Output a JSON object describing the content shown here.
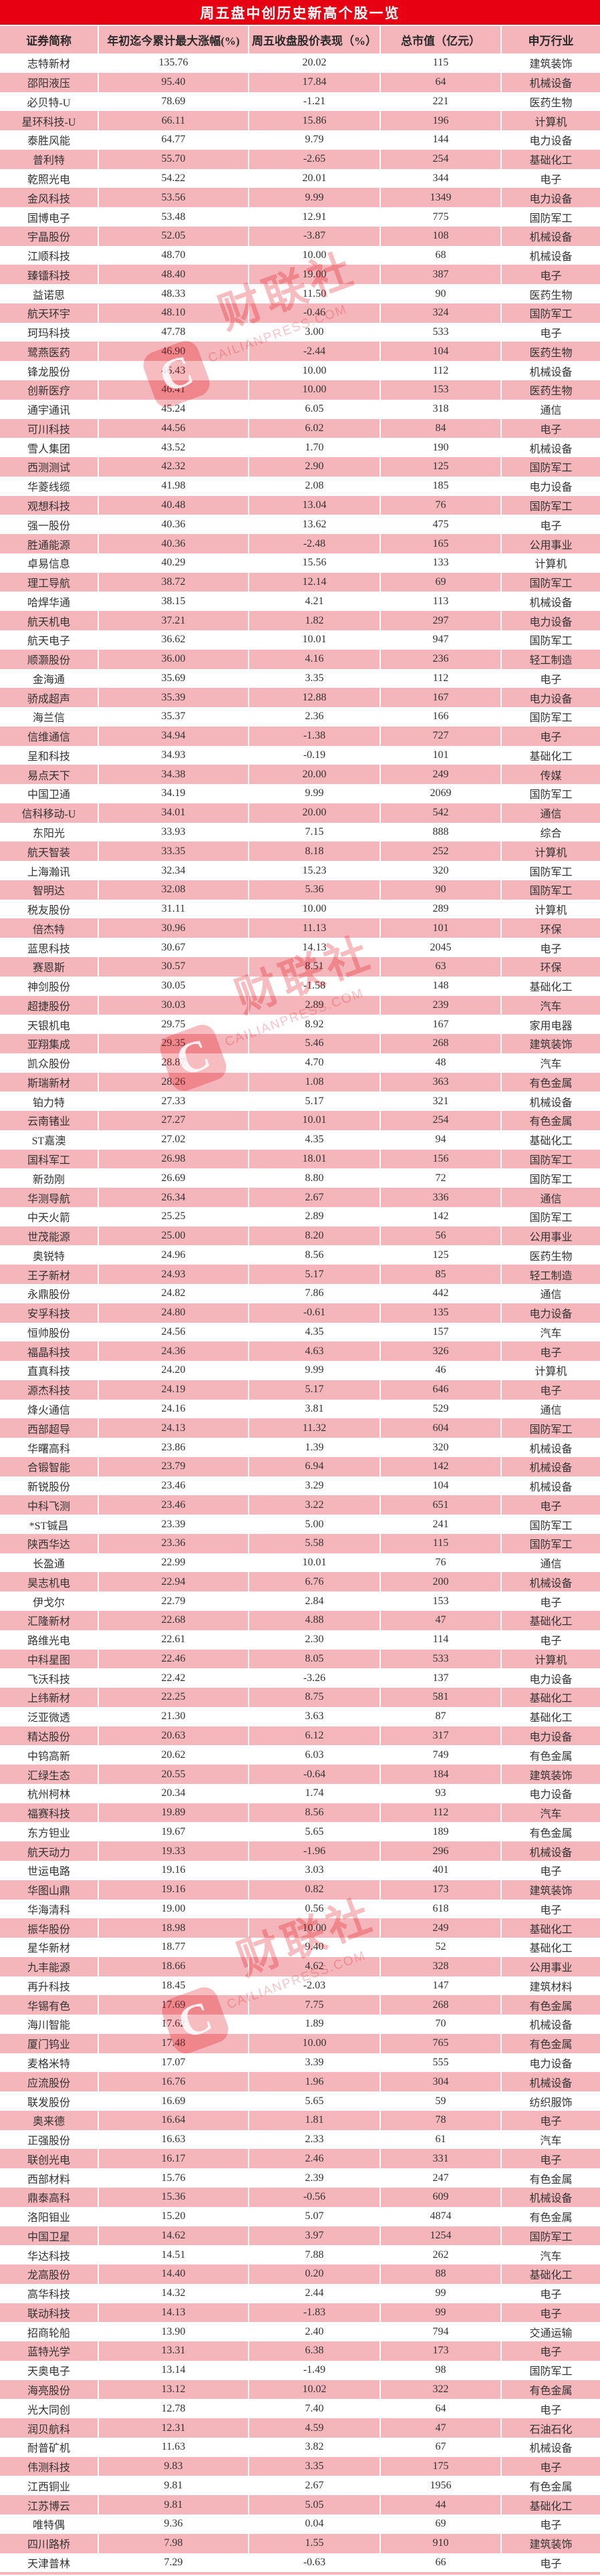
{
  "title": "周五盘中创历史新高个股一览",
  "columns": [
    "证券简称",
    "年初迄今累计最大涨幅(%)",
    "周五收盘股价表现（%）",
    "总市值（亿元）",
    "申万行业"
  ],
  "watermark": {
    "logo_letter": "C",
    "brand": "财联社",
    "domain": "CAILIANPRESS.COM"
  },
  "colors": {
    "title_bg": "#e60012",
    "row_pink": "#f4b6ba",
    "row_white": "#ffffff",
    "text": "#333333",
    "title_text": "#ffffff"
  },
  "rows": [
    [
      "志特新材",
      "135.76",
      "20.02",
      "115",
      "建筑装饰"
    ],
    [
      "邵阳液压",
      "95.40",
      "17.84",
      "64",
      "机械设备"
    ],
    [
      "必贝特-U",
      "78.69",
      "-1.21",
      "221",
      "医药生物"
    ],
    [
      "星环科技-U",
      "66.11",
      "15.86",
      "196",
      "计算机"
    ],
    [
      "泰胜风能",
      "64.77",
      "9.79",
      "144",
      "电力设备"
    ],
    [
      "普利特",
      "55.70",
      "-2.65",
      "254",
      "基础化工"
    ],
    [
      "乾照光电",
      "54.22",
      "20.01",
      "344",
      "电子"
    ],
    [
      "金风科技",
      "53.56",
      "9.99",
      "1349",
      "电力设备"
    ],
    [
      "国博电子",
      "53.48",
      "12.91",
      "775",
      "国防军工"
    ],
    [
      "宇晶股份",
      "52.05",
      "-3.87",
      "108",
      "机械设备"
    ],
    [
      "江顺科技",
      "48.70",
      "10.00",
      "68",
      "机械设备"
    ],
    [
      "臻镭科技",
      "48.40",
      "19.00",
      "387",
      "电子"
    ],
    [
      "益诺思",
      "48.33",
      "11.50",
      "90",
      "医药生物"
    ],
    [
      "航天环宇",
      "48.10",
      "-0.46",
      "324",
      "国防军工"
    ],
    [
      "珂玛科技",
      "47.78",
      "3.00",
      "533",
      "电子"
    ],
    [
      "鹭燕医药",
      "46.90",
      "-2.44",
      "104",
      "医药生物"
    ],
    [
      "锋龙股份",
      "46.43",
      "10.00",
      "112",
      "机械设备"
    ],
    [
      "创新医疗",
      "46.41",
      "10.00",
      "153",
      "医药生物"
    ],
    [
      "通宇通讯",
      "45.24",
      "6.05",
      "318",
      "通信"
    ],
    [
      "可川科技",
      "44.56",
      "6.02",
      "84",
      "电子"
    ],
    [
      "雪人集团",
      "43.52",
      "1.70",
      "190",
      "机械设备"
    ],
    [
      "西测测试",
      "42.32",
      "2.90",
      "125",
      "国防军工"
    ],
    [
      "华菱线缆",
      "41.98",
      "2.08",
      "185",
      "电力设备"
    ],
    [
      "观想科技",
      "40.48",
      "13.04",
      "76",
      "国防军工"
    ],
    [
      "强一股份",
      "40.36",
      "13.62",
      "475",
      "电子"
    ],
    [
      "胜通能源",
      "40.36",
      "-2.48",
      "165",
      "公用事业"
    ],
    [
      "卓易信息",
      "40.29",
      "15.56",
      "133",
      "计算机"
    ],
    [
      "理工导航",
      "38.72",
      "12.14",
      "69",
      "国防军工"
    ],
    [
      "哈焊华通",
      "38.15",
      "4.21",
      "113",
      "机械设备"
    ],
    [
      "航天机电",
      "37.21",
      "1.82",
      "297",
      "电力设备"
    ],
    [
      "航天电子",
      "36.62",
      "10.01",
      "947",
      "国防军工"
    ],
    [
      "顺灏股份",
      "36.00",
      "4.16",
      "236",
      "轻工制造"
    ],
    [
      "金海通",
      "35.69",
      "3.35",
      "112",
      "电子"
    ],
    [
      "骄成超声",
      "35.39",
      "12.88",
      "167",
      "电力设备"
    ],
    [
      "海兰信",
      "35.37",
      "2.36",
      "166",
      "国防军工"
    ],
    [
      "信维通信",
      "34.94",
      "-1.38",
      "727",
      "电子"
    ],
    [
      "呈和科技",
      "34.93",
      "-0.19",
      "101",
      "基础化工"
    ],
    [
      "易点天下",
      "34.38",
      "20.00",
      "249",
      "传媒"
    ],
    [
      "中国卫通",
      "34.19",
      "9.99",
      "2069",
      "国防军工"
    ],
    [
      "信科移动-U",
      "34.01",
      "20.00",
      "542",
      "通信"
    ],
    [
      "东阳光",
      "33.93",
      "7.15",
      "888",
      "综合"
    ],
    [
      "航天智装",
      "33.35",
      "8.18",
      "252",
      "计算机"
    ],
    [
      "上海瀚讯",
      "32.34",
      "15.23",
      "320",
      "国防军工"
    ],
    [
      "智明达",
      "32.08",
      "5.36",
      "90",
      "国防军工"
    ],
    [
      "税友股份",
      "31.11",
      "10.00",
      "289",
      "计算机"
    ],
    [
      "倍杰特",
      "30.96",
      "11.13",
      "101",
      "环保"
    ],
    [
      "蓝思科技",
      "30.67",
      "14.13",
      "2045",
      "电子"
    ],
    [
      "赛恩斯",
      "30.57",
      "8.51",
      "63",
      "环保"
    ],
    [
      "神剑股份",
      "30.05",
      "-1.58",
      "148",
      "基础化工"
    ],
    [
      "超捷股份",
      "30.03",
      "2.89",
      "239",
      "汽车"
    ],
    [
      "天银机电",
      "29.75",
      "8.92",
      "167",
      "家用电器"
    ],
    [
      "亚翔集成",
      "29.35",
      "5.46",
      "268",
      "建筑装饰"
    ],
    [
      "凯众股份",
      "28.87",
      "4.70",
      "48",
      "汽车"
    ],
    [
      "斯瑞新材",
      "28.26",
      "1.08",
      "363",
      "有色金属"
    ],
    [
      "铂力特",
      "27.33",
      "5.17",
      "321",
      "机械设备"
    ],
    [
      "云南锗业",
      "27.27",
      "10.01",
      "254",
      "有色金属"
    ],
    [
      "ST嘉澳",
      "27.02",
      "4.35",
      "94",
      "基础化工"
    ],
    [
      "国科军工",
      "26.98",
      "18.01",
      "156",
      "国防军工"
    ],
    [
      "新劲刚",
      "26.69",
      "8.80",
      "72",
      "国防军工"
    ],
    [
      "华测导航",
      "26.34",
      "2.67",
      "336",
      "通信"
    ],
    [
      "中天火箭",
      "25.25",
      "2.89",
      "142",
      "国防军工"
    ],
    [
      "世茂能源",
      "25.00",
      "8.20",
      "56",
      "公用事业"
    ],
    [
      "奥锐特",
      "24.96",
      "8.56",
      "125",
      "医药生物"
    ],
    [
      "王子新材",
      "24.93",
      "5.17",
      "85",
      "轻工制造"
    ],
    [
      "永鼎股份",
      "24.82",
      "7.86",
      "442",
      "通信"
    ],
    [
      "安孚科技",
      "24.80",
      "-0.61",
      "135",
      "电力设备"
    ],
    [
      "恒帅股份",
      "24.56",
      "4.35",
      "157",
      "汽车"
    ],
    [
      "福晶科技",
      "24.36",
      "4.63",
      "326",
      "电子"
    ],
    [
      "直真科技",
      "24.20",
      "9.99",
      "46",
      "计算机"
    ],
    [
      "源杰科技",
      "24.19",
      "5.17",
      "646",
      "电子"
    ],
    [
      "烽火通信",
      "24.16",
      "3.81",
      "529",
      "通信"
    ],
    [
      "西部超导",
      "24.13",
      "11.32",
      "604",
      "国防军工"
    ],
    [
      "华曙高科",
      "23.86",
      "1.39",
      "320",
      "机械设备"
    ],
    [
      "合锻智能",
      "23.79",
      "6.94",
      "142",
      "机械设备"
    ],
    [
      "新锐股份",
      "23.46",
      "3.29",
      "104",
      "机械设备"
    ],
    [
      "中科飞测",
      "23.46",
      "3.22",
      "651",
      "电子"
    ],
    [
      "*ST铖昌",
      "23.39",
      "5.00",
      "241",
      "国防军工"
    ],
    [
      "陕西华达",
      "23.36",
      "5.58",
      "115",
      "国防军工"
    ],
    [
      "长盈通",
      "22.99",
      "10.01",
      "76",
      "通信"
    ],
    [
      "昊志机电",
      "22.94",
      "6.76",
      "200",
      "机械设备"
    ],
    [
      "伊戈尔",
      "22.79",
      "2.84",
      "153",
      "电子"
    ],
    [
      "汇隆新材",
      "22.68",
      "4.88",
      "47",
      "基础化工"
    ],
    [
      "路维光电",
      "22.61",
      "2.30",
      "114",
      "电子"
    ],
    [
      "中科星图",
      "22.46",
      "8.05",
      "533",
      "计算机"
    ],
    [
      "飞沃科技",
      "22.42",
      "-3.26",
      "137",
      "电力设备"
    ],
    [
      "上纬新材",
      "22.25",
      "8.75",
      "581",
      "基础化工"
    ],
    [
      "泛亚微透",
      "21.30",
      "3.63",
      "87",
      "基础化工"
    ],
    [
      "精达股份",
      "20.63",
      "6.12",
      "317",
      "电力设备"
    ],
    [
      "中钨高新",
      "20.62",
      "6.03",
      "749",
      "有色金属"
    ],
    [
      "汇绿生态",
      "20.55",
      "-0.64",
      "184",
      "建筑装饰"
    ],
    [
      "杭州柯林",
      "20.34",
      "1.74",
      "93",
      "电力设备"
    ],
    [
      "福赛科技",
      "19.89",
      "8.56",
      "112",
      "汽车"
    ],
    [
      "东方钽业",
      "19.67",
      "5.65",
      "189",
      "有色金属"
    ],
    [
      "航天动力",
      "19.33",
      "-1.96",
      "296",
      "机械设备"
    ],
    [
      "世运电路",
      "19.16",
      "3.03",
      "401",
      "电子"
    ],
    [
      "华图山鼎",
      "19.16",
      "0.82",
      "173",
      "建筑装饰"
    ],
    [
      "华海清科",
      "19.00",
      "0.56",
      "618",
      "电子"
    ],
    [
      "振华股份",
      "18.98",
      "10.00",
      "249",
      "基础化工"
    ],
    [
      "星华新材",
      "18.77",
      "9.40",
      "52",
      "基础化工"
    ],
    [
      "九丰能源",
      "18.66",
      "4.62",
      "328",
      "公用事业"
    ],
    [
      "再升科技",
      "18.45",
      "-2.03",
      "147",
      "建筑材料"
    ],
    [
      "华锡有色",
      "17.69",
      "7.75",
      "268",
      "有色金属"
    ],
    [
      "海川智能",
      "17.62",
      "1.89",
      "70",
      "机械设备"
    ],
    [
      "厦门钨业",
      "17.48",
      "10.00",
      "765",
      "有色金属"
    ],
    [
      "麦格米特",
      "17.07",
      "3.39",
      "555",
      "电力设备"
    ],
    [
      "应流股份",
      "16.76",
      "1.96",
      "304",
      "机械设备"
    ],
    [
      "联发股份",
      "16.69",
      "5.65",
      "59",
      "纺织服饰"
    ],
    [
      "奥来德",
      "16.64",
      "1.81",
      "78",
      "电子"
    ],
    [
      "正强股份",
      "16.63",
      "2.33",
      "61",
      "汽车"
    ],
    [
      "联创光电",
      "16.17",
      "2.46",
      "331",
      "电子"
    ],
    [
      "西部材料",
      "15.76",
      "2.39",
      "247",
      "有色金属"
    ],
    [
      "鼎泰高科",
      "15.36",
      "-0.56",
      "609",
      "机械设备"
    ],
    [
      "洛阳钼业",
      "15.20",
      "5.07",
      "4874",
      "有色金属"
    ],
    [
      "中国卫星",
      "14.62",
      "3.97",
      "1254",
      "国防军工"
    ],
    [
      "华达科技",
      "14.51",
      "7.88",
      "262",
      "汽车"
    ],
    [
      "龙高股份",
      "14.40",
      "0.20",
      "88",
      "基础化工"
    ],
    [
      "高华科技",
      "14.32",
      "2.44",
      "99",
      "电子"
    ],
    [
      "联动科技",
      "14.13",
      "-1.83",
      "99",
      "电子"
    ],
    [
      "招商轮船",
      "13.90",
      "2.40",
      "794",
      "交通运输"
    ],
    [
      "蓝特光学",
      "13.31",
      "6.38",
      "173",
      "电子"
    ],
    [
      "天奥电子",
      "13.14",
      "-1.49",
      "98",
      "国防军工"
    ],
    [
      "海亮股份",
      "13.12",
      "10.02",
      "322",
      "有色金属"
    ],
    [
      "光大同创",
      "12.78",
      "7.40",
      "64",
      "电子"
    ],
    [
      "润贝航科",
      "12.31",
      "4.59",
      "47",
      "石油石化"
    ],
    [
      "耐普矿机",
      "11.63",
      "3.82",
      "67",
      "机械设备"
    ],
    [
      "伟测科技",
      "9.83",
      "3.35",
      "175",
      "电子"
    ],
    [
      "江西铜业",
      "9.81",
      "2.67",
      "1956",
      "有色金属"
    ],
    [
      "江苏博云",
      "9.81",
      "5.05",
      "44",
      "基础化工"
    ],
    [
      "唯特偶",
      "9.36",
      "0.04",
      "69",
      "电子"
    ],
    [
      "四川路桥",
      "7.98",
      "1.55",
      "910",
      "建筑装饰"
    ],
    [
      "天津普林",
      "7.29",
      "-0.63",
      "66",
      "电子"
    ]
  ]
}
